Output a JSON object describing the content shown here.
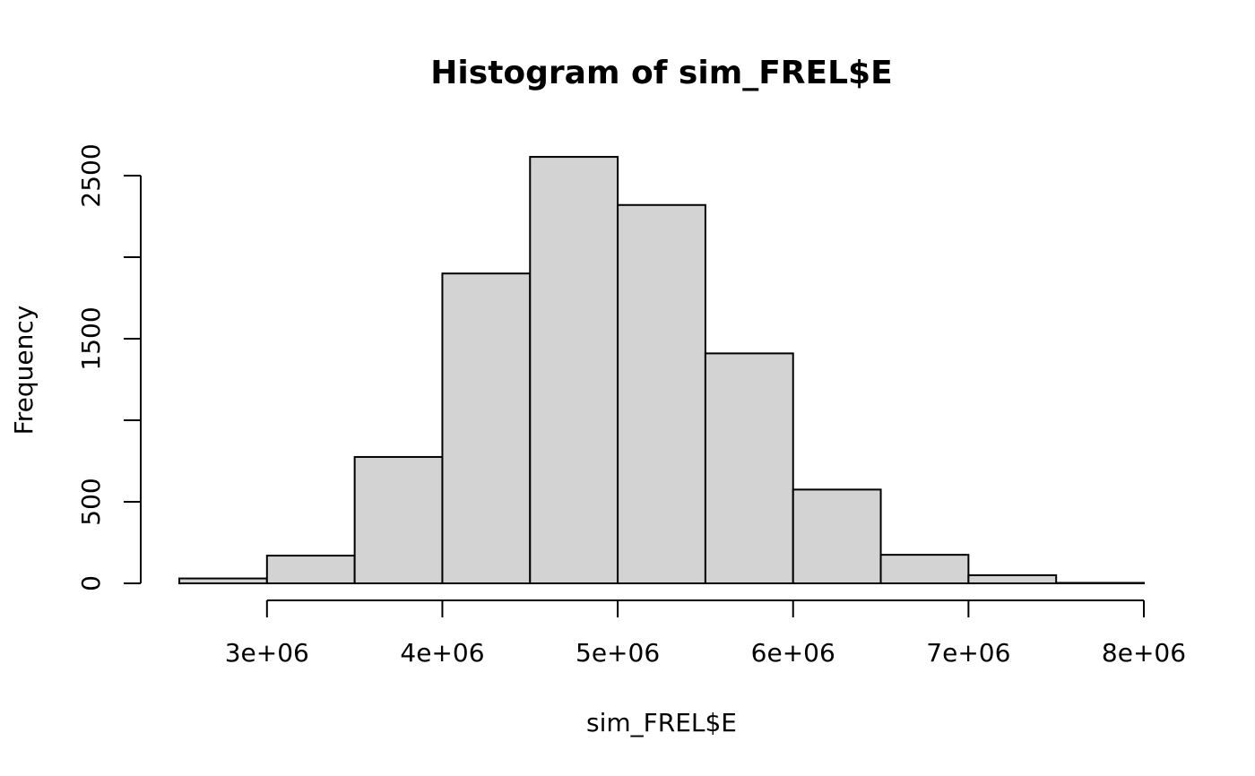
{
  "chart_data": {
    "type": "bar",
    "title": "Histogram of sim_FREL$E",
    "xlabel": "sim_FREL$E",
    "ylabel": "Frequency",
    "bins": [
      {
        "start": 2500000,
        "end": 3000000,
        "count": 30
      },
      {
        "start": 3000000,
        "end": 3500000,
        "count": 170
      },
      {
        "start": 3500000,
        "end": 4000000,
        "count": 775
      },
      {
        "start": 4000000,
        "end": 4500000,
        "count": 1900
      },
      {
        "start": 4500000,
        "end": 5000000,
        "count": 2615
      },
      {
        "start": 5000000,
        "end": 5500000,
        "count": 2320
      },
      {
        "start": 5500000,
        "end": 6000000,
        "count": 1410
      },
      {
        "start": 6000000,
        "end": 6500000,
        "count": 575
      },
      {
        "start": 6500000,
        "end": 7000000,
        "count": 175
      },
      {
        "start": 7000000,
        "end": 7500000,
        "count": 50
      },
      {
        "start": 7500000,
        "end": 8000000,
        "count": 3
      }
    ],
    "x_ticks": [
      {
        "value": 3000000,
        "label": "3e+06"
      },
      {
        "value": 4000000,
        "label": "4e+06"
      },
      {
        "value": 5000000,
        "label": "5e+06"
      },
      {
        "value": 6000000,
        "label": "6e+06"
      },
      {
        "value": 7000000,
        "label": "7e+06"
      },
      {
        "value": 8000000,
        "label": "8e+06"
      }
    ],
    "y_ticks": [
      {
        "value": 0,
        "label": "0"
      },
      {
        "value": 500,
        "label": "500"
      },
      {
        "value": 1000,
        "label": ""
      },
      {
        "value": 1500,
        "label": "1500"
      },
      {
        "value": 2000,
        "label": ""
      },
      {
        "value": 2500,
        "label": "2500"
      }
    ],
    "xlim": [
      2500000,
      8000000
    ],
    "ylim": [
      0,
      2615
    ],
    "grid": false,
    "bar_color": "#d3d3d3",
    "edge_color": "#000000"
  }
}
